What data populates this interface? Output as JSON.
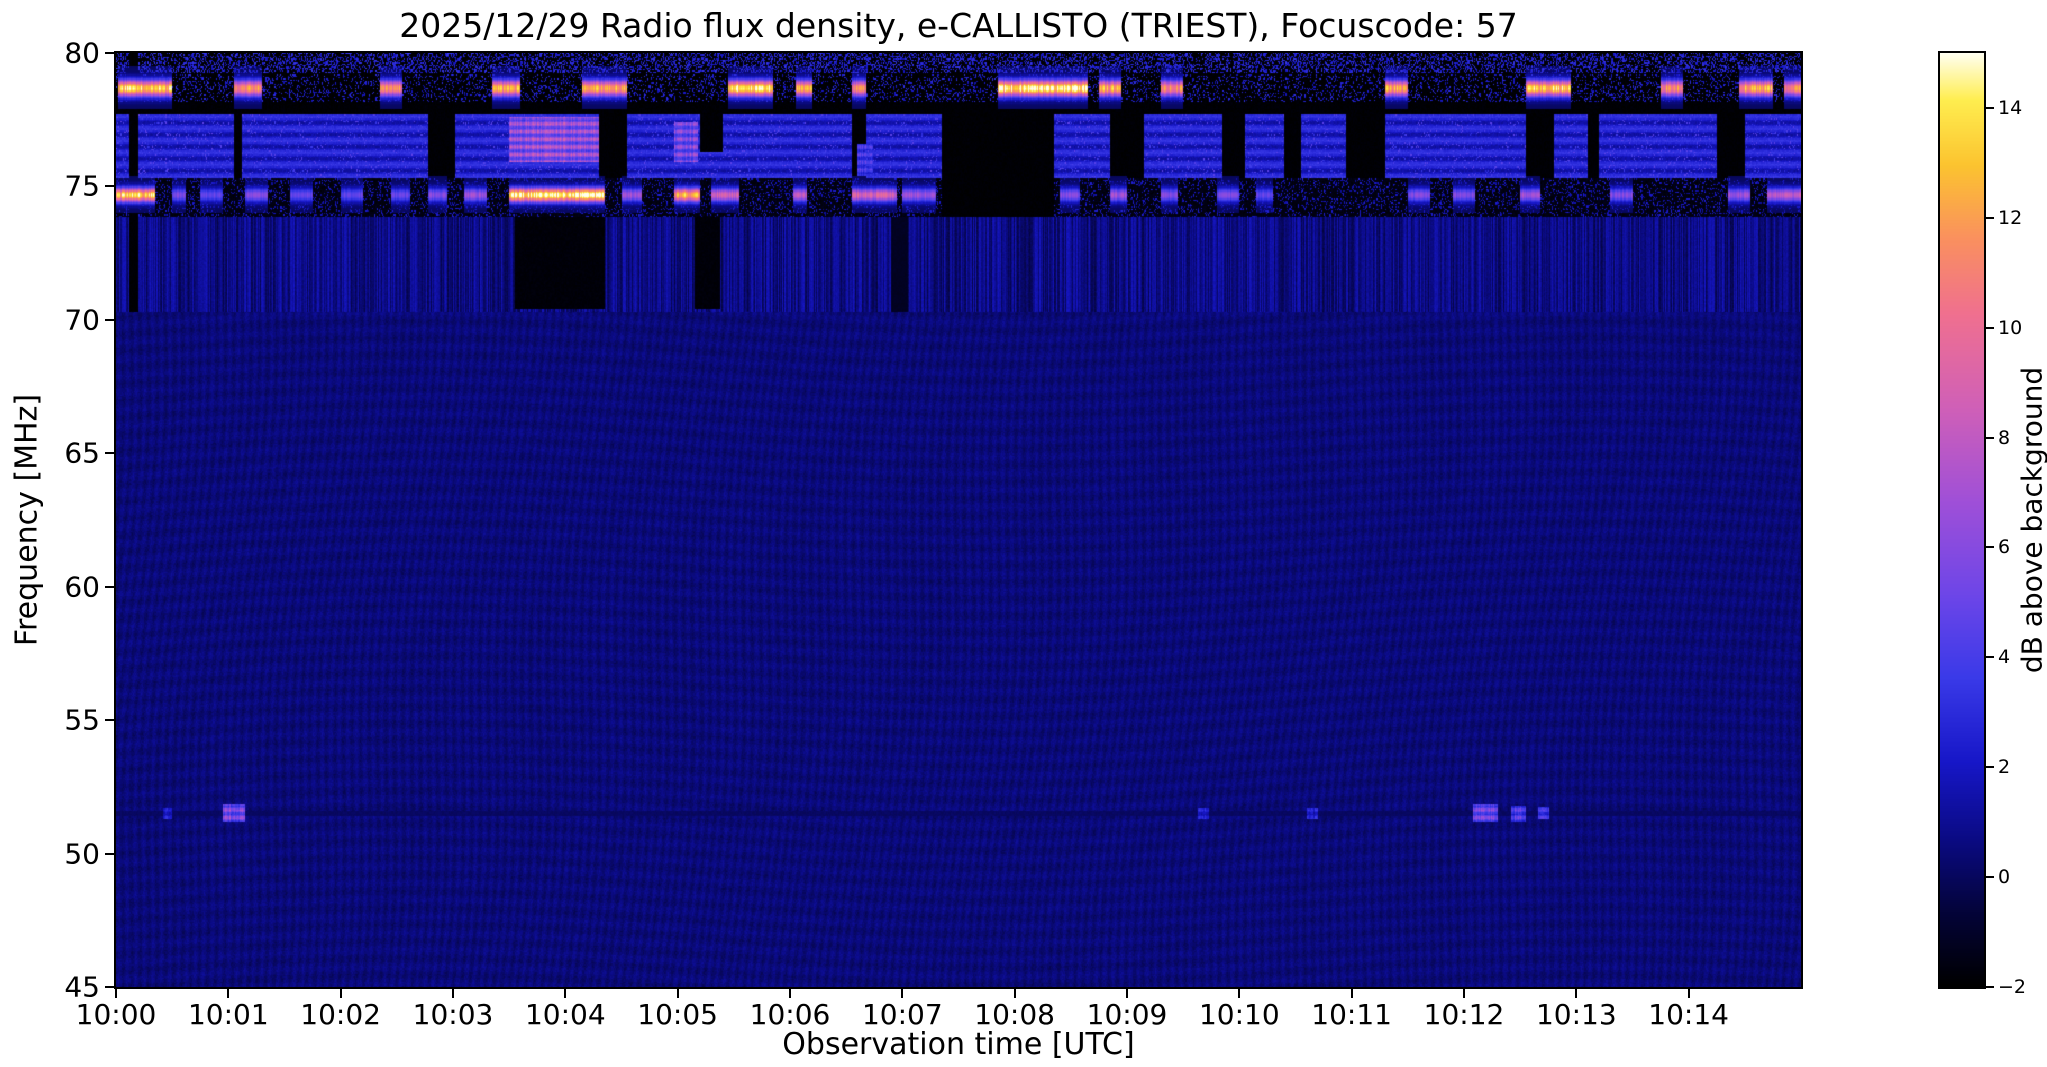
{
  "chart_data": {
    "type": "heatmap",
    "title": "2025/12/29  Radio flux density, e-CALLISTO (TRIEST), Focuscode: 57",
    "xlabel": "Observation time [UTC]",
    "ylabel": "Frequency [MHz]",
    "x_tick_labels": [
      "10:00",
      "10:01",
      "10:02",
      "10:03",
      "10:04",
      "10:05",
      "10:06",
      "10:07",
      "10:08",
      "10:09",
      "10:10",
      "10:11",
      "10:12",
      "10:13",
      "10:14"
    ],
    "x_range_minutes": [
      0,
      15
    ],
    "ylim": [
      45,
      80
    ],
    "y_tick_values": [
      45,
      50,
      55,
      60,
      65,
      70,
      75,
      80
    ],
    "grid": false,
    "colorbar": {
      "label": "dB above background",
      "tick_values": [
        -2,
        0,
        2,
        4,
        6,
        8,
        10,
        12,
        14
      ],
      "range": [
        -2,
        15
      ],
      "colormap_stops": [
        [
          0.0,
          "#000000"
        ],
        [
          0.08,
          "#04043a"
        ],
        [
          0.16,
          "#0b0b86"
        ],
        [
          0.24,
          "#1717c8"
        ],
        [
          0.33,
          "#3a3ae8"
        ],
        [
          0.42,
          "#6e46e8"
        ],
        [
          0.52,
          "#a050d8"
        ],
        [
          0.62,
          "#d060b8"
        ],
        [
          0.72,
          "#f07090"
        ],
        [
          0.8,
          "#fa9060"
        ],
        [
          0.88,
          "#fcc430"
        ],
        [
          0.95,
          "#ffee50"
        ],
        [
          1.0,
          "#fffff0"
        ]
      ]
    },
    "background_level_db": 0.45,
    "texture_bands": [
      {
        "mode": "fill",
        "t0": 0,
        "t1": 15,
        "f0": 77.7,
        "f1": 80.2,
        "db": -1.9,
        "jitter": 0.3
      },
      {
        "mode": "speckle",
        "t0": 0,
        "t1": 15,
        "f0": 79.25,
        "f1": 80.0,
        "db": 2.6,
        "density": 0.4
      },
      {
        "mode": "speckle",
        "t0": 0,
        "t1": 15,
        "f0": 78.15,
        "f1": 79.2,
        "db": 2.3,
        "density": 0.2
      },
      {
        "mode": "stripes",
        "t0": 0,
        "t1": 15,
        "f0": 75.3,
        "f1": 77.7,
        "db": 2.3,
        "amp": 1.0,
        "period": 9
      },
      {
        "mode": "speckle",
        "t0": 0,
        "t1": 15,
        "f0": 75.3,
        "f1": 77.7,
        "db": 3.8,
        "density": 0.1
      },
      {
        "mode": "fill",
        "t0": 0,
        "t1": 15,
        "f0": 73.85,
        "f1": 75.3,
        "db": -1.6,
        "jitter": 0.5
      },
      {
        "mode": "speckle",
        "t0": 0,
        "t1": 15,
        "f0": 73.85,
        "f1": 75.3,
        "db": 1.7,
        "density": 0.2
      },
      {
        "mode": "vstripes",
        "t0": 0,
        "t1": 15,
        "f0": 70.3,
        "f1": 73.85,
        "db": 0.7,
        "amp": 0.9
      }
    ],
    "quiet_line": {
      "t0": 0,
      "t1": 15,
      "f0": 51.38,
      "f1": 51.62,
      "db": 0.05,
      "jitter": 0.3
    },
    "black_dropouts": [
      [
        0.12,
        0.2,
        70.3,
        80.2,
        -1.9
      ],
      [
        1.05,
        1.12,
        75.3,
        77.7,
        -1.9
      ],
      [
        2.78,
        3.02,
        75.3,
        77.7,
        -1.9
      ],
      [
        4.3,
        4.55,
        75.3,
        77.7,
        -1.9
      ],
      [
        5.2,
        5.4,
        76.3,
        77.7,
        -1.9
      ],
      [
        6.55,
        6.68,
        75.3,
        77.7,
        -1.9
      ],
      [
        7.35,
        8.35,
        73.85,
        78.0,
        -1.9
      ],
      [
        8.85,
        9.15,
        75.3,
        77.7,
        -1.9
      ],
      [
        9.85,
        10.05,
        75.3,
        77.7,
        -1.9
      ],
      [
        10.4,
        10.55,
        75.3,
        77.7,
        -1.9
      ],
      [
        10.95,
        11.3,
        75.3,
        77.7,
        -1.9
      ],
      [
        12.55,
        12.8,
        75.3,
        77.7,
        -1.9
      ],
      [
        13.1,
        13.2,
        75.3,
        77.7,
        -1.9
      ],
      [
        14.25,
        14.5,
        75.3,
        77.7,
        -1.9
      ],
      [
        3.55,
        4.35,
        70.4,
        73.85,
        -1.8
      ],
      [
        5.15,
        5.38,
        70.4,
        73.85,
        -1.8
      ],
      [
        6.9,
        7.05,
        70.3,
        73.85,
        -1.2
      ]
    ],
    "rfi_lines": [
      {
        "f_center": 74.7,
        "f_halfwidth": 0.35,
        "softness": 0.55,
        "segments": [
          [
            0.0,
            0.35,
            14
          ],
          [
            0.5,
            0.62,
            6
          ],
          [
            0.75,
            0.95,
            5
          ],
          [
            1.15,
            1.35,
            6
          ],
          [
            1.55,
            1.75,
            5
          ],
          [
            2.0,
            2.2,
            5
          ],
          [
            2.45,
            2.62,
            5
          ],
          [
            2.78,
            2.95,
            6
          ],
          [
            3.1,
            3.3,
            7
          ],
          [
            3.5,
            4.35,
            15
          ],
          [
            4.5,
            4.68,
            7
          ],
          [
            4.97,
            5.2,
            13
          ],
          [
            5.3,
            5.55,
            9
          ],
          [
            6.03,
            6.15,
            8
          ],
          [
            6.55,
            6.95,
            9
          ],
          [
            7.0,
            7.3,
            7
          ],
          [
            8.4,
            8.58,
            6
          ],
          [
            8.85,
            9.0,
            7
          ],
          [
            9.3,
            9.45,
            6
          ],
          [
            9.8,
            10.0,
            6
          ],
          [
            10.15,
            10.3,
            5
          ],
          [
            11.5,
            11.7,
            6
          ],
          [
            11.9,
            12.1,
            6
          ],
          [
            12.5,
            12.68,
            7
          ],
          [
            13.3,
            13.5,
            6
          ],
          [
            14.35,
            14.55,
            7
          ],
          [
            14.7,
            15.0,
            8
          ]
        ]
      },
      {
        "f_center": 78.7,
        "f_halfwidth": 0.4,
        "softness": 0.55,
        "segments": [
          [
            0.02,
            0.5,
            14
          ],
          [
            1.05,
            1.3,
            12
          ],
          [
            2.35,
            2.55,
            12
          ],
          [
            3.35,
            3.6,
            13
          ],
          [
            4.15,
            4.55,
            13
          ],
          [
            5.45,
            5.85,
            15
          ],
          [
            6.05,
            6.2,
            13
          ],
          [
            6.55,
            6.68,
            12
          ],
          [
            7.85,
            8.65,
            15
          ],
          [
            8.75,
            8.95,
            13
          ],
          [
            9.3,
            9.5,
            12
          ],
          [
            11.3,
            11.5,
            13
          ],
          [
            12.55,
            12.95,
            14
          ],
          [
            13.75,
            13.95,
            12
          ],
          [
            14.45,
            14.75,
            13
          ],
          [
            14.85,
            15.0,
            12
          ]
        ]
      }
    ],
    "bright_patches": [
      {
        "t0": 3.5,
        "t1": 4.3,
        "f0": 75.9,
        "f1": 77.6,
        "db": 8.5
      },
      {
        "t0": 4.97,
        "t1": 5.18,
        "f0": 75.9,
        "f1": 77.4,
        "db": 7.0
      },
      {
        "t0": 6.6,
        "t1": 6.74,
        "f0": 75.4,
        "f1": 76.6,
        "db": 5.0
      },
      {
        "t0": 0.42,
        "t1": 0.5,
        "f0": 51.3,
        "f1": 51.7,
        "db": 3.0
      },
      {
        "t0": 0.95,
        "t1": 1.15,
        "f0": 51.2,
        "f1": 51.85,
        "db": 7.0
      },
      {
        "t0": 9.63,
        "t1": 9.73,
        "f0": 51.3,
        "f1": 51.7,
        "db": 3.2
      },
      {
        "t0": 10.6,
        "t1": 10.7,
        "f0": 51.3,
        "f1": 51.7,
        "db": 3.2
      },
      {
        "t0": 12.08,
        "t1": 12.3,
        "f0": 51.2,
        "f1": 51.85,
        "db": 6.5
      },
      {
        "t0": 12.42,
        "t1": 12.55,
        "f0": 51.2,
        "f1": 51.8,
        "db": 5.5
      },
      {
        "t0": 12.66,
        "t1": 12.76,
        "f0": 51.3,
        "f1": 51.75,
        "db": 4.5
      }
    ]
  }
}
